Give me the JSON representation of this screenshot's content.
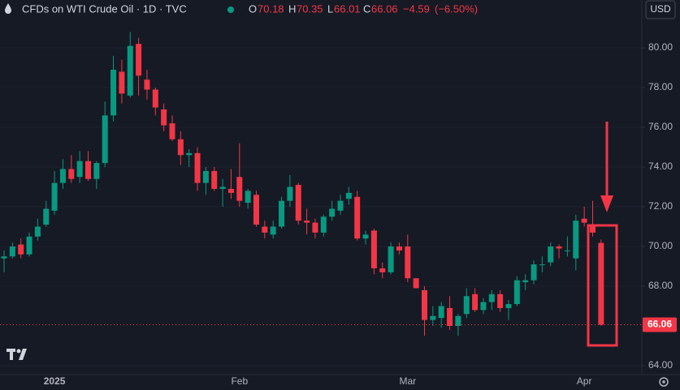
{
  "chart_data": {
    "type": "candlestick",
    "title": "CFDs on WTI Crude Oil · 1D · TVC",
    "header_labels": [
      "O",
      "H",
      "L",
      "C"
    ],
    "change": {
      "value": -4.59,
      "label": "−4.59"
    },
    "change_pct": {
      "value": -6.5,
      "label": "(−6.50%)"
    },
    "currency": "USD",
    "categories": [
      null,
      null,
      null,
      null,
      null,
      null,
      "2025",
      null,
      null,
      null,
      null,
      null,
      null,
      null,
      null,
      null,
      null,
      null,
      null,
      null,
      null,
      null,
      null,
      null,
      null,
      null,
      null,
      null,
      "Feb",
      null,
      null,
      null,
      null,
      null,
      null,
      null,
      null,
      null,
      null,
      null,
      null,
      null,
      null,
      null,
      null,
      null,
      null,
      null,
      "Mar",
      null,
      null,
      null,
      null,
      null,
      null,
      null,
      null,
      null,
      null,
      null,
      null,
      null,
      null,
      null,
      null,
      null,
      null,
      null,
      null,
      "Apr",
      null,
      null
    ],
    "open": [
      69.4,
      69.5,
      70.1,
      69.6,
      70.5,
      71.1,
      71.8,
      73.2,
      73.9,
      73.5,
      74.3,
      73.4,
      74.2,
      76.6,
      78.8,
      77.6,
      80.2,
      78.4,
      77.9,
      76.9,
      76.2,
      75.4,
      74.6,
      74.7,
      73.2,
      73.8,
      72.9,
      72.9,
      73.5,
      72.2,
      72.6,
      71.0,
      70.6,
      71.0,
      72.3,
      73.1,
      71.3,
      71.2,
      70.7,
      71.5,
      71.8,
      72.4,
      72.5,
      70.4,
      70.8,
      68.9,
      68.7,
      70.0,
      70.0,
      68.4,
      67.8,
      66.3,
      66.4,
      66.9,
      66.0,
      66.6,
      67.6,
      66.8,
      67.2,
      67.6,
      66.9,
      67.1,
      68.2,
      68.3,
      69.1,
      69.2,
      70.0,
      69.8,
      69.4,
      71.4,
      71.0,
      70.18
    ],
    "high": [
      69.8,
      70.2,
      70.4,
      70.7,
      71.4,
      72.3,
      73.8,
      74.4,
      74.6,
      74.8,
      74.8,
      74.3,
      77.3,
      79.6,
      79.4,
      80.8,
      80.5,
      78.9,
      78.0,
      77.2,
      76.6,
      75.8,
      74.9,
      75.0,
      74.0,
      74.0,
      73.4,
      73.9,
      75.2,
      72.9,
      72.8,
      71.3,
      71.3,
      72.5,
      73.6,
      73.2,
      71.9,
      71.4,
      71.6,
      72.3,
      72.6,
      73.0,
      72.8,
      70.8,
      70.9,
      69.2,
      70.2,
      70.2,
      70.6,
      68.4,
      68.0,
      67.0,
      67.2,
      67.5,
      66.6,
      67.9,
      67.9,
      67.4,
      67.8,
      67.8,
      67.3,
      68.5,
      68.6,
      69.3,
      69.5,
      70.2,
      70.1,
      70.5,
      71.6,
      72.0,
      72.3,
      70.35
    ],
    "low": [
      68.7,
      69.4,
      69.4,
      69.5,
      70.3,
      71.0,
      71.6,
      72.9,
      73.2,
      73.2,
      73.3,
      72.9,
      74.0,
      76.3,
      77.2,
      77.5,
      77.6,
      77.4,
      76.6,
      75.8,
      75.3,
      74.1,
      74.0,
      72.8,
      72.6,
      72.8,
      72.0,
      72.4,
      72.0,
      71.9,
      71.0,
      70.4,
      70.4,
      70.9,
      72.0,
      71.1,
      70.6,
      70.4,
      70.5,
      71.3,
      71.6,
      72.1,
      70.3,
      70.1,
      68.6,
      68.4,
      68.6,
      69.6,
      68.2,
      67.9,
      65.5,
      66.0,
      65.9,
      65.8,
      65.5,
      66.4,
      66.7,
      66.6,
      66.8,
      66.7,
      66.3,
      67.0,
      67.8,
      68.1,
      68.7,
      69.0,
      69.4,
      69.5,
      68.8,
      71.0,
      70.5,
      66.01
    ],
    "close": [
      69.5,
      70.0,
      69.6,
      70.5,
      71.0,
      71.9,
      73.2,
      73.9,
      73.4,
      74.3,
      73.4,
      74.2,
      76.6,
      78.9,
      77.7,
      80.1,
      78.6,
      77.9,
      77.0,
      76.1,
      75.4,
      74.6,
      74.7,
      73.2,
      73.8,
      72.9,
      73.0,
      72.7,
      72.3,
      72.8,
      71.1,
      70.7,
      71.0,
      72.3,
      73.0,
      71.3,
      71.2,
      70.7,
      71.5,
      71.9,
      72.3,
      72.7,
      70.4,
      70.6,
      68.9,
      68.7,
      70.0,
      69.8,
      68.4,
      67.9,
      66.3,
      66.5,
      67.0,
      66.0,
      66.5,
      67.5,
      66.8,
      67.2,
      67.6,
      66.9,
      67.1,
      68.3,
      68.3,
      69.1,
      69.1,
      70.0,
      69.9,
      69.8,
      71.3,
      71.2,
      70.7,
      66.06
    ],
    "up_color": "#089981",
    "down_color": "#f23645",
    "ylim": [
      63.55,
      82.41
    ],
    "yticks": [
      {
        "value": 64,
        "label": "64.00"
      },
      {
        "value": 68,
        "label": "68.00"
      },
      {
        "value": 70,
        "label": "70.00"
      },
      {
        "value": 72,
        "label": "72.00"
      },
      {
        "value": 74,
        "label": "74.00"
      },
      {
        "value": 76,
        "label": "76.00"
      },
      {
        "value": 78,
        "label": "78.00"
      },
      {
        "value": 80,
        "label": "80.00"
      }
    ],
    "grid": true
  }
}
